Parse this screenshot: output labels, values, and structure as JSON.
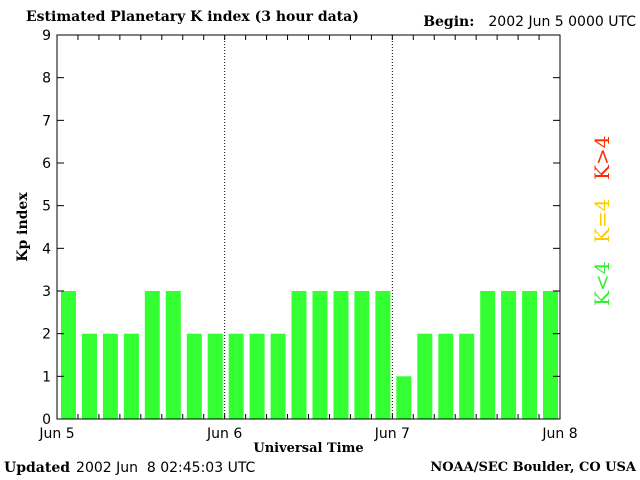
{
  "header": {
    "title": "Estimated Planetary K index (3 hour data)",
    "begin_label": "Begin:",
    "begin_value": "2002 Jun 5 0000 UTC"
  },
  "footer": {
    "updated_label": "Updated",
    "updated_value": "2002 Jun  8 02:45:03 UTC",
    "credit": "NOAA/SEC Boulder, CO USA"
  },
  "legend": {
    "items": [
      {
        "label": "K>4",
        "color": "#ff2a00"
      },
      {
        "label": "K=4",
        "color": "#ffcc00"
      },
      {
        "label": "K<4",
        "color": "#33ee33"
      }
    ]
  },
  "chart_data": {
    "type": "bar",
    "xlabel": "Universal Time",
    "ylabel": "Kp index",
    "ylim": [
      0,
      9
    ],
    "yticks": [
      0,
      1,
      2,
      3,
      4,
      5,
      6,
      7,
      8,
      9
    ],
    "xtick_labels": [
      "Jun 5",
      "Jun 6",
      "Jun 7",
      "Jun 8"
    ],
    "day_dividers": [
      "Jun 6",
      "Jun 7"
    ],
    "grid": false,
    "bar_color": "#33ff33",
    "values": [
      3,
      2,
      2,
      2,
      3,
      3,
      2,
      2,
      2,
      2,
      2,
      3,
      3,
      3,
      3,
      3,
      1,
      2,
      2,
      2,
      3,
      3,
      3,
      3
    ]
  }
}
